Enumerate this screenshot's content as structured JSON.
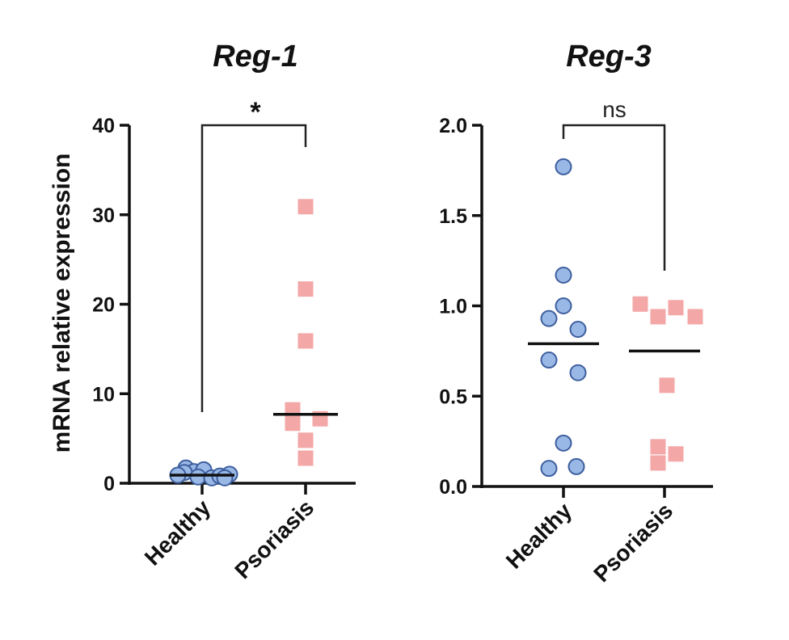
{
  "chart_data": [
    {
      "type": "scatter",
      "title": "Reg-1",
      "ylabel": "mRNA relative expression",
      "ylim": [
        0,
        40
      ],
      "yticks": [
        "0",
        "10",
        "20",
        "30",
        "40"
      ],
      "ytick_values": [
        0,
        10,
        20,
        30,
        40
      ],
      "categories": [
        "Healthy",
        "Psoriasis"
      ],
      "series": [
        {
          "name": "Healthy",
          "marker": "circle",
          "color": "#9ab8e6",
          "edge": "#3d5f9e",
          "values": [
            1.7,
            1.3,
            1.5,
            1.2,
            0.9,
            0.7,
            0.6,
            0.8,
            1.0,
            0.6
          ],
          "median": 0.9
        },
        {
          "name": "Psoriasis",
          "marker": "square",
          "color": "#f4a7a7",
          "edge": "#f4a7a7",
          "values": [
            30.9,
            21.7,
            15.9,
            8.2,
            6.7,
            7.2,
            4.8,
            2.8
          ],
          "median": 7.7
        }
      ],
      "significance": "*"
    },
    {
      "type": "scatter",
      "title": "Reg-3",
      "ylabel": "",
      "ylim": [
        0,
        2.0
      ],
      "yticks": [
        "0.0",
        "0.5",
        "1.0",
        "1.5",
        "2.0"
      ],
      "ytick_values": [
        0,
        0.5,
        1.0,
        1.5,
        2.0
      ],
      "categories": [
        "Healthy",
        "Psoriasis"
      ],
      "series": [
        {
          "name": "Healthy",
          "marker": "circle",
          "color": "#9ab8e6",
          "edge": "#3d5f9e",
          "values": [
            1.77,
            1.17,
            1.0,
            0.93,
            0.87,
            0.7,
            0.63,
            0.24,
            0.1,
            0.11
          ],
          "median": 0.79
        },
        {
          "name": "Psoriasis",
          "marker": "square",
          "color": "#f4a7a7",
          "edge": "#f4a7a7",
          "values": [
            1.01,
            0.94,
            0.99,
            0.94,
            0.56,
            0.22,
            0.18,
            0.13
          ],
          "median": 0.75
        }
      ],
      "significance": "ns"
    }
  ]
}
